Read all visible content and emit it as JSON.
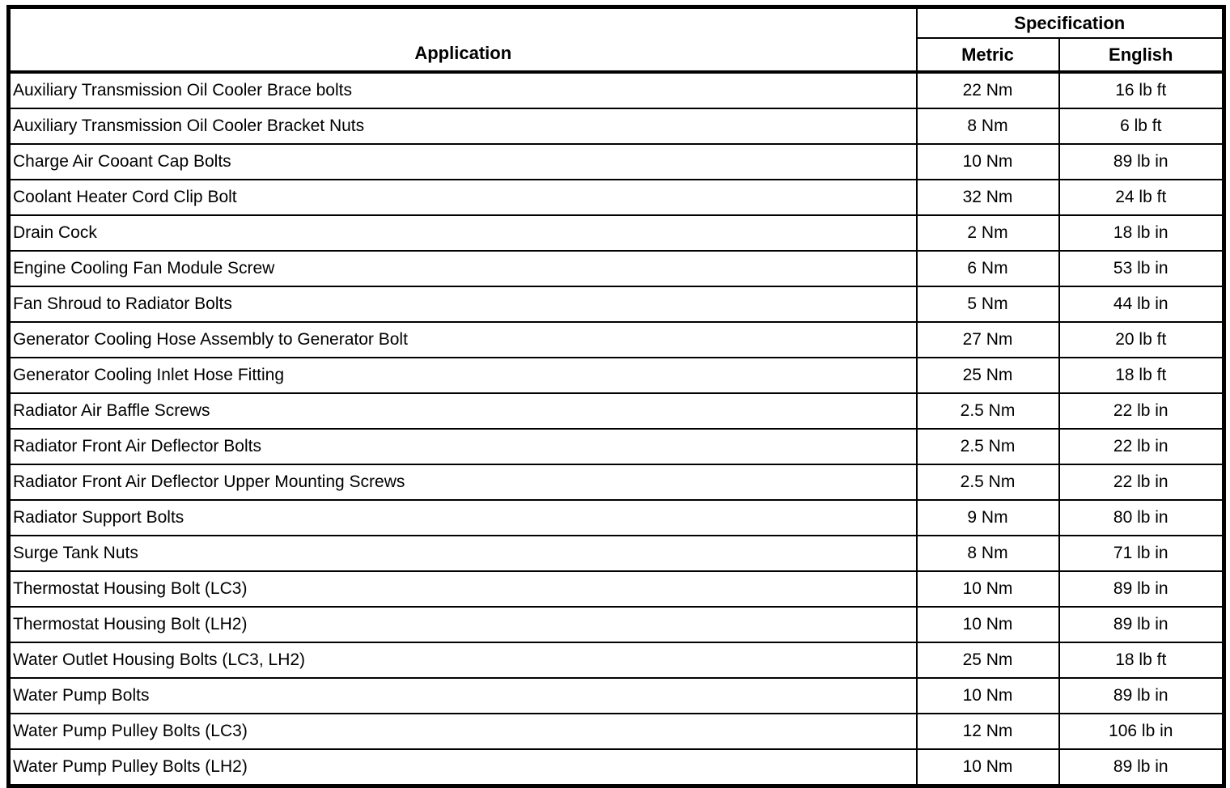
{
  "table": {
    "header": {
      "application": "Application",
      "specification": "Specification",
      "metric": "Metric",
      "english": "English"
    },
    "rows": [
      {
        "application": "Auxiliary Transmission Oil Cooler Brace bolts",
        "metric": "22 Nm",
        "english": "16 lb ft"
      },
      {
        "application": "Auxiliary Transmission Oil Cooler Bracket Nuts",
        "metric": "8 Nm",
        "english": "6 lb ft"
      },
      {
        "application": "Charge Air Cooant Cap Bolts",
        "metric": "10 Nm",
        "english": "89 lb in"
      },
      {
        "application": "Coolant Heater Cord Clip Bolt",
        "metric": "32 Nm",
        "english": "24 lb ft"
      },
      {
        "application": "Drain Cock",
        "metric": "2 Nm",
        "english": "18 lb in"
      },
      {
        "application": "Engine Cooling Fan Module Screw",
        "metric": "6 Nm",
        "english": "53 lb in"
      },
      {
        "application": "Fan Shroud to Radiator Bolts",
        "metric": "5 Nm",
        "english": "44 lb in"
      },
      {
        "application": "Generator Cooling Hose Assembly to Generator Bolt",
        "metric": "27 Nm",
        "english": "20 lb ft"
      },
      {
        "application": "Generator Cooling Inlet Hose Fitting",
        "metric": "25 Nm",
        "english": "18 lb ft"
      },
      {
        "application": "Radiator Air Baffle Screws",
        "metric": "2.5 Nm",
        "english": "22 lb in"
      },
      {
        "application": "Radiator Front Air Deflector Bolts",
        "metric": "2.5 Nm",
        "english": "22 lb in"
      },
      {
        "application": "Radiator Front Air Deflector Upper Mounting Screws",
        "metric": "2.5 Nm",
        "english": "22 lb in"
      },
      {
        "application": "Radiator Support Bolts",
        "metric": "9 Nm",
        "english": "80 lb in"
      },
      {
        "application": "Surge Tank Nuts",
        "metric": "8 Nm",
        "english": "71 lb in"
      },
      {
        "application": "Thermostat Housing Bolt (LC3)",
        "metric": "10 Nm",
        "english": "89 lb in"
      },
      {
        "application": "Thermostat Housing Bolt (LH2)",
        "metric": "10 Nm",
        "english": "89 lb in"
      },
      {
        "application": "Water Outlet Housing Bolts (LC3, LH2)",
        "metric": "25 Nm",
        "english": "18 lb ft"
      },
      {
        "application": "Water Pump Bolts",
        "metric": "10 Nm",
        "english": "89 lb in"
      },
      {
        "application": "Water Pump Pulley Bolts (LC3)",
        "metric": "12 Nm",
        "english": "106 lb in"
      },
      {
        "application": "Water Pump Pulley Bolts (LH2)",
        "metric": "10 Nm",
        "english": "89 lb in"
      }
    ]
  },
  "colors": {
    "border": "#000000",
    "background": "#ffffff",
    "text": "#000000"
  }
}
